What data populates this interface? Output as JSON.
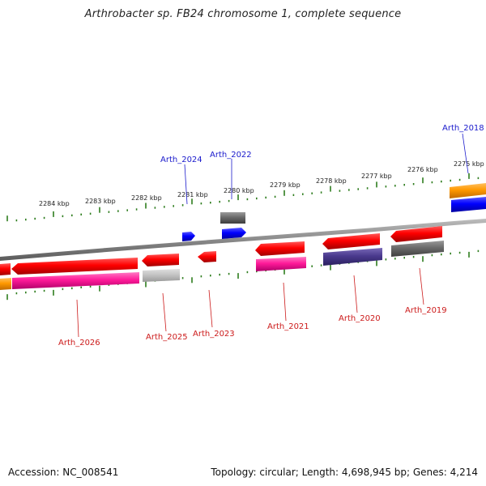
{
  "title": "Arthrobacter sp. FB24 chromosome 1, complete sequence",
  "footer": {
    "accession": "Accession: NC_008541",
    "summary": "Topology: circular; Length: 4,698,945 bp; Genes: 4,214"
  },
  "colors": {
    "backbone": "#8c8c8c",
    "ticks": "#2e7d1e",
    "forward_label": "#1a1acc",
    "reverse_label": "#cc1a1a"
  },
  "scale_labels": [
    "2284 kbp",
    "2283 kbp",
    "2282 kbp",
    "2281 kbp",
    "2280 kbp",
    "2279 kbp",
    "2278 kbp",
    "2277 kbp",
    "2276 kbp",
    "2275 kbp"
  ],
  "forward_labels": [
    "Arth_2024",
    "Arth_2022",
    "Arth_2018"
  ],
  "reverse_labels": [
    "Arth_2026",
    "Arth_2025",
    "Arth_2023",
    "Arth_2021",
    "Arth_2020",
    "Arth_2019"
  ]
}
